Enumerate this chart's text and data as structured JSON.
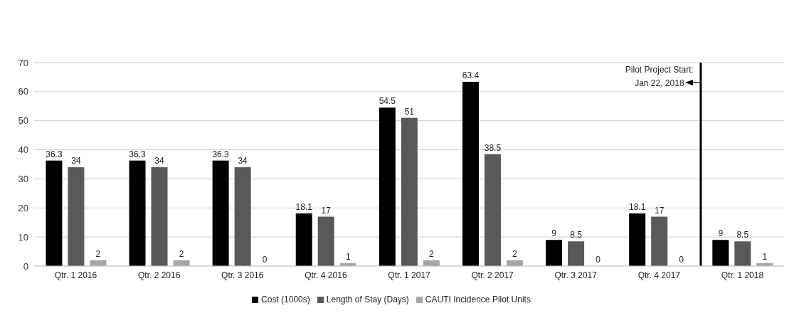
{
  "chart_data": {
    "type": "bar",
    "categories": [
      "Qtr. 1 2016",
      "Qtr. 2 2016",
      "Qtr. 3 2016",
      "Qtr. 4 2016",
      "Qtr. 1 2017",
      "Qtr. 2 2017",
      "Qtr. 3 2017",
      "Qtr. 4 2017",
      "Qtr. 1 2018"
    ],
    "series": [
      {
        "name": "Cost (1000s)",
        "color": "#000000",
        "values": [
          36.3,
          36.3,
          36.3,
          18.1,
          54.5,
          63.4,
          9,
          18.1,
          9
        ]
      },
      {
        "name": "Length of Stay (Days)",
        "color": "#595959",
        "values": [
          34,
          34,
          34,
          17,
          51,
          38.5,
          8.5,
          17,
          8.5
        ]
      },
      {
        "name": "CAUTI Incidence Pilot Units",
        "color": "#a6a6a6",
        "values": [
          2,
          2,
          0,
          1,
          2,
          2,
          0,
          0,
          1
        ]
      }
    ],
    "ylim": [
      0,
      70
    ],
    "yticks": [
      0,
      10,
      20,
      30,
      40,
      50,
      60,
      70
    ],
    "grid": "y",
    "legend": "bottom",
    "data_labels": true,
    "ref_lines": [
      {
        "axis": "x",
        "value": "Qtr. 1 2018",
        "label": "Pilot Project Start:\nJan 22, 2018",
        "color": "#000000"
      }
    ]
  }
}
